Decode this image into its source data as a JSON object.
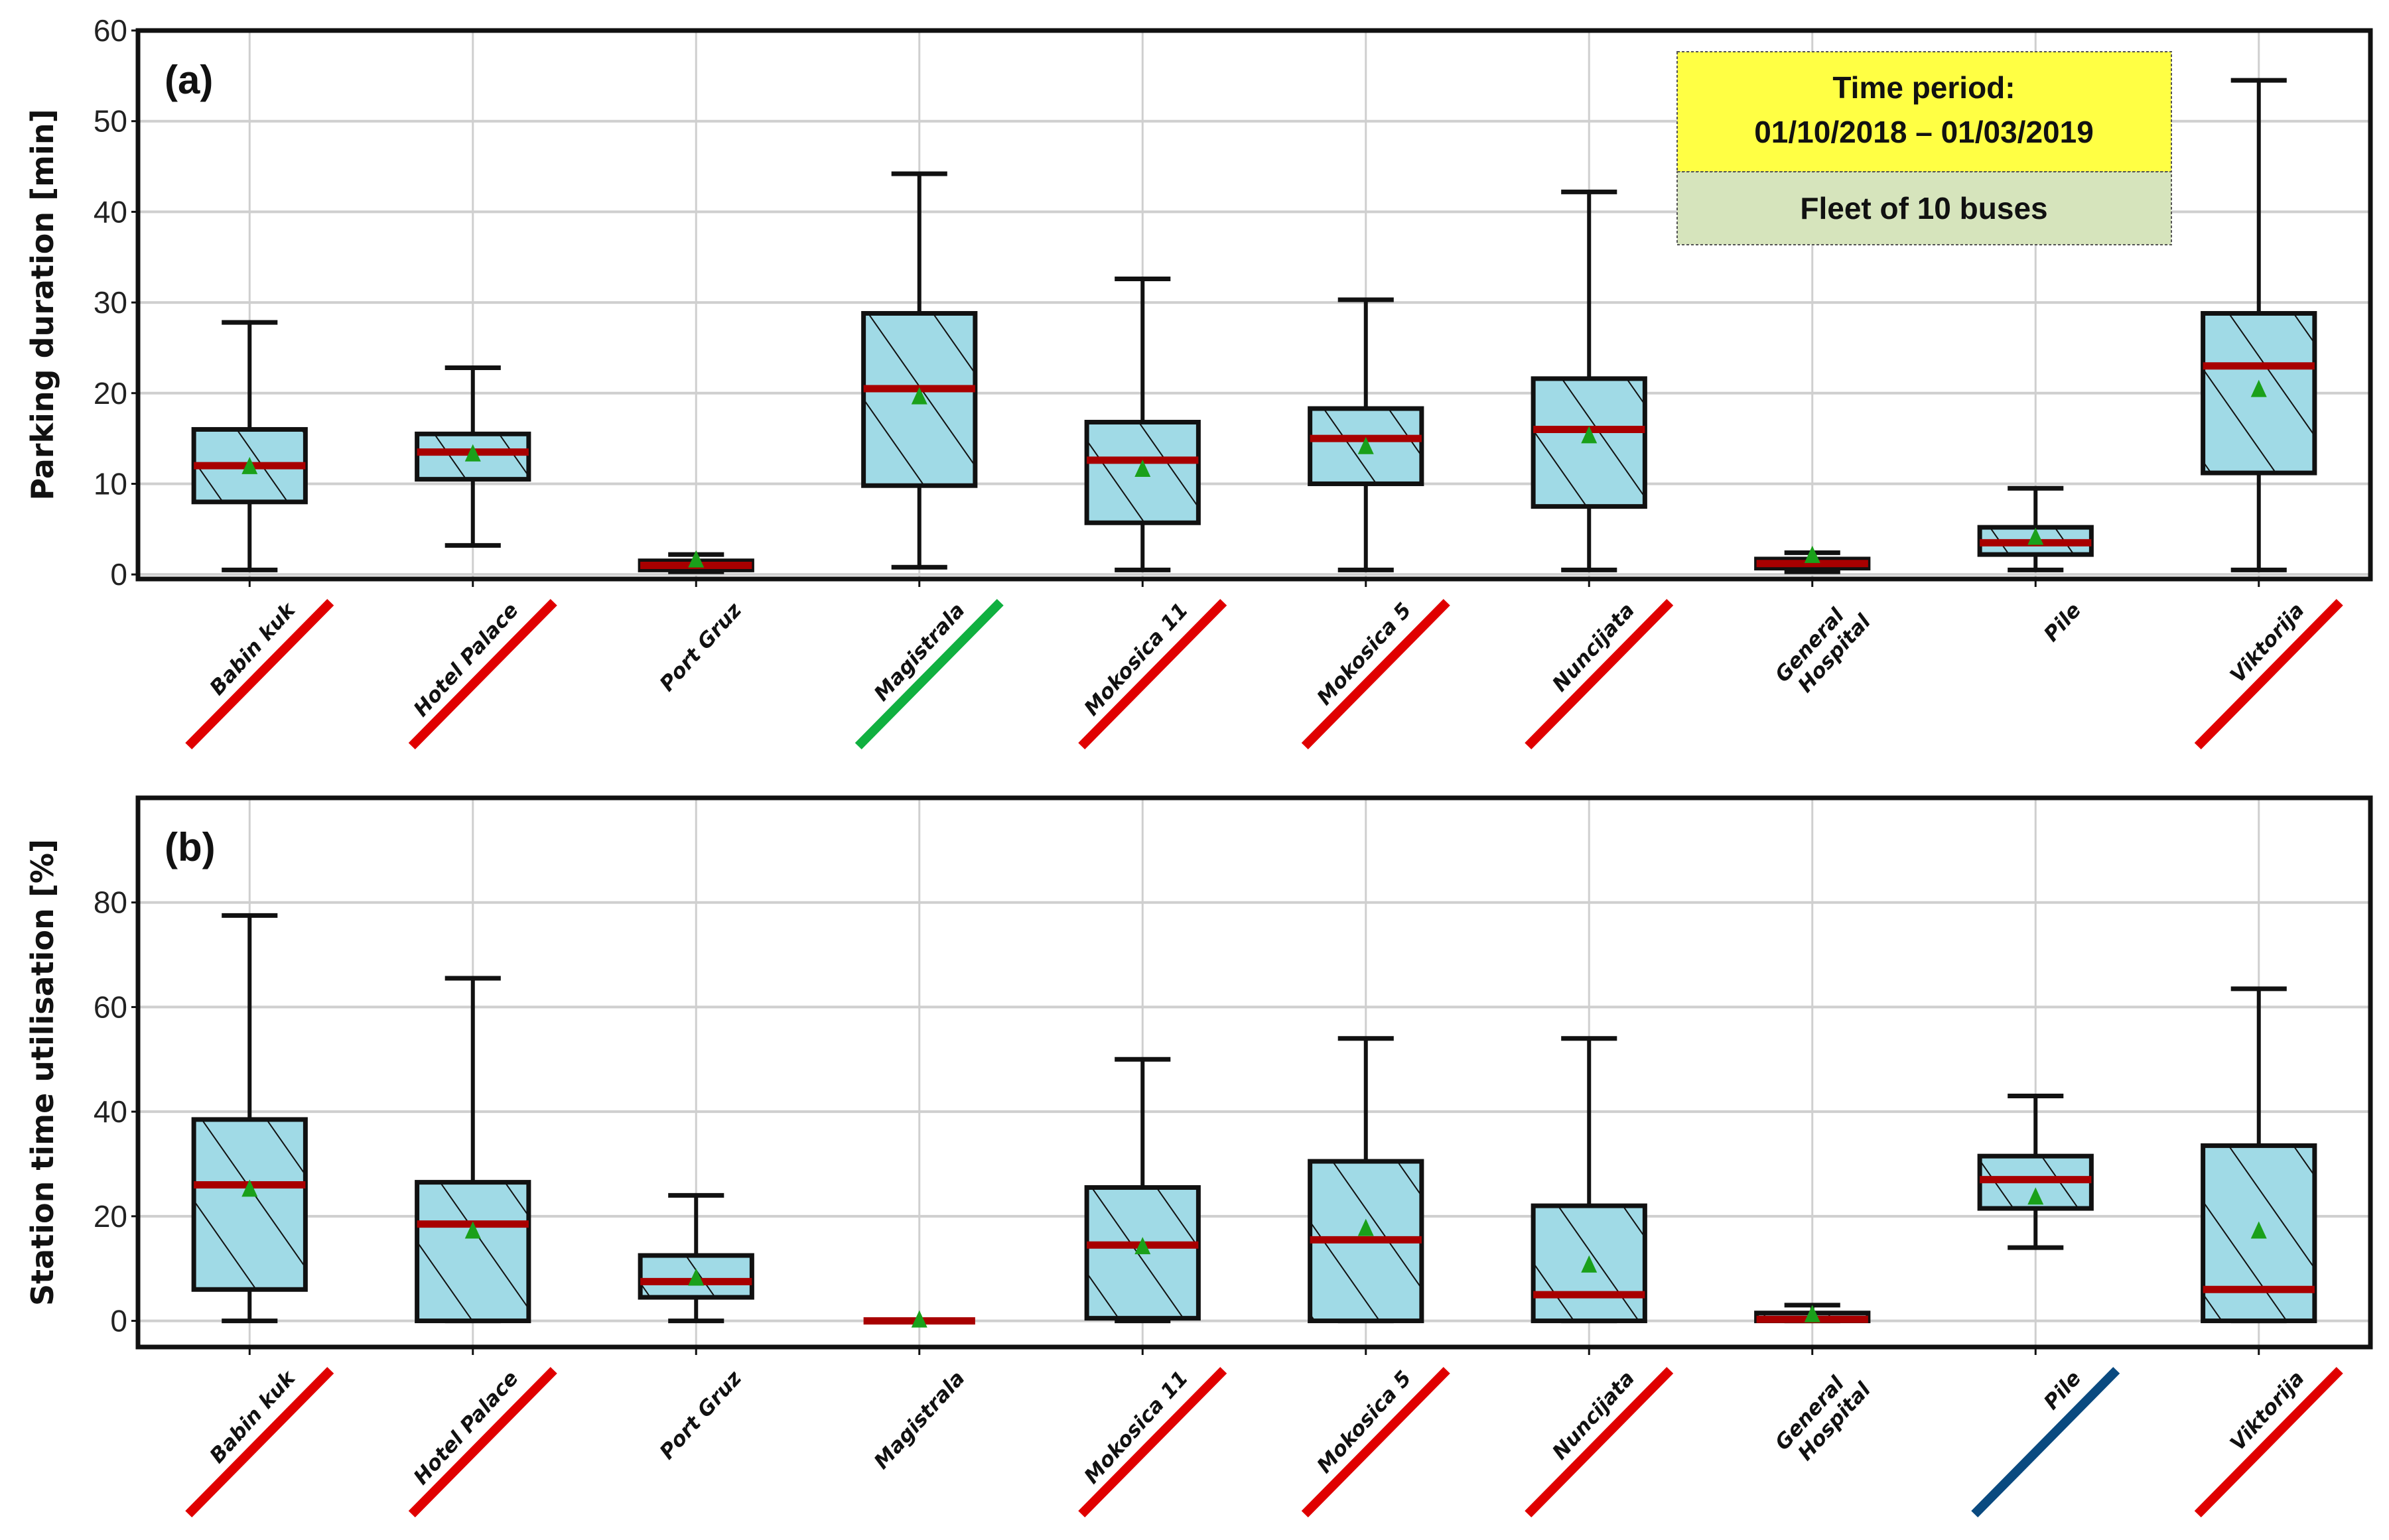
{
  "colors": {
    "box_fill": "#a0dae6",
    "median": "#a80000",
    "mean_marker": "#1aa01a",
    "grid": "#cfcfcf",
    "note_top": "#ffff44",
    "note_bottom": "#d6e4bc",
    "underline_red": "#e00000",
    "underline_green": "#10b040",
    "underline_blue": "#0a4a80"
  },
  "chart_data": [
    {
      "type": "box",
      "panel_label": "(a)",
      "ylabel": "Parking duration [min]",
      "ylim": [
        -0.5,
        60
      ],
      "yticks": [
        0,
        10,
        20,
        30,
        40,
        50,
        60
      ],
      "grid": true,
      "annotation": {
        "line1": "Time period:",
        "line2": "01/10/2018 – 01/03/2019",
        "line3": "Fleet of 10 buses"
      },
      "categories": [
        "Babin kuk",
        "Hotel Palace",
        "Port Gruz",
        "Magistrala",
        "Mokosica 11",
        "Mokosica 5",
        "Nuncijata",
        "General\nHospital",
        "Pile",
        "Viktorija"
      ],
      "category_underline": [
        "red",
        "red",
        null,
        "green",
        "red",
        "red",
        "red",
        null,
        null,
        "red"
      ],
      "boxes": [
        {
          "whislo": 0.5,
          "q1": 8.0,
          "med": 12.0,
          "q3": 16.0,
          "whishi": 27.8,
          "mean": 11.8
        },
        {
          "whislo": 3.2,
          "q1": 10.5,
          "med": 13.5,
          "q3": 15.5,
          "whishi": 22.8,
          "mean": 13.2
        },
        {
          "whislo": 0.3,
          "q1": 0.5,
          "med": 1.0,
          "q3": 1.5,
          "whishi": 2.2,
          "mean": 1.5
        },
        {
          "whislo": 0.8,
          "q1": 9.8,
          "med": 20.5,
          "q3": 28.8,
          "whishi": 44.2,
          "mean": 19.5
        },
        {
          "whislo": 0.5,
          "q1": 5.7,
          "med": 12.6,
          "q3": 16.8,
          "whishi": 32.6,
          "mean": 11.5
        },
        {
          "whislo": 0.5,
          "q1": 10.0,
          "med": 15.0,
          "q3": 18.3,
          "whishi": 30.3,
          "mean": 14.0
        },
        {
          "whislo": 0.5,
          "q1": 7.5,
          "med": 16.0,
          "q3": 21.6,
          "whishi": 42.2,
          "mean": 15.2
        },
        {
          "whislo": 0.3,
          "q1": 0.7,
          "med": 1.2,
          "q3": 1.7,
          "whishi": 2.4,
          "mean": 2.0
        },
        {
          "whislo": 0.5,
          "q1": 2.2,
          "med": 3.5,
          "q3": 5.2,
          "whishi": 9.5,
          "mean": 4.0
        },
        {
          "whislo": 0.5,
          "q1": 11.2,
          "med": 23.0,
          "q3": 28.8,
          "whishi": 54.5,
          "mean": 20.3
        }
      ]
    },
    {
      "type": "box",
      "panel_label": "(b)",
      "ylabel": "Station time utilisation [%]",
      "ylim": [
        -5,
        100
      ],
      "yticks": [
        0,
        20,
        40,
        60,
        80
      ],
      "grid": true,
      "categories": [
        "Babin kuk",
        "Hotel Palace",
        "Port Gruz",
        "Magistrala",
        "Mokosica 11",
        "Mokosica 5",
        "Nuncijata",
        "General\nHospital",
        "Pile",
        "Viktorija"
      ],
      "category_underline": [
        "red",
        "red",
        null,
        null,
        "red",
        "red",
        "red",
        null,
        "blue",
        "red"
      ],
      "boxes": [
        {
          "whislo": 0,
          "q1": 6.0,
          "med": 26.0,
          "q3": 38.5,
          "whishi": 77.5,
          "mean": 25.0
        },
        {
          "whislo": 0,
          "q1": 0,
          "med": 18.5,
          "q3": 26.5,
          "whishi": 65.5,
          "mean": 17.0
        },
        {
          "whislo": 0,
          "q1": 4.5,
          "med": 7.5,
          "q3": 12.5,
          "whishi": 24.0,
          "mean": 8.0
        },
        {
          "whislo": 0,
          "q1": 0,
          "med": 0,
          "q3": 0,
          "whishi": 0,
          "mean": 0
        },
        {
          "whislo": 0,
          "q1": 0.5,
          "med": 14.5,
          "q3": 25.5,
          "whishi": 50.0,
          "mean": 14.0
        },
        {
          "whislo": 0,
          "q1": 0,
          "med": 15.5,
          "q3": 30.5,
          "whishi": 54.0,
          "mean": 17.5
        },
        {
          "whislo": 0,
          "q1": 0,
          "med": 5.0,
          "q3": 22.0,
          "whishi": 54.0,
          "mean": 10.5
        },
        {
          "whislo": 0,
          "q1": 0,
          "med": 0.3,
          "q3": 1.5,
          "whishi": 3.0,
          "mean": 1.0
        },
        {
          "whislo": 14.0,
          "q1": 21.5,
          "med": 27.0,
          "q3": 31.5,
          "whishi": 43.0,
          "mean": 23.5
        },
        {
          "whislo": 0,
          "q1": 0,
          "med": 6.0,
          "q3": 33.5,
          "whishi": 63.5,
          "mean": 17.0
        }
      ]
    }
  ]
}
